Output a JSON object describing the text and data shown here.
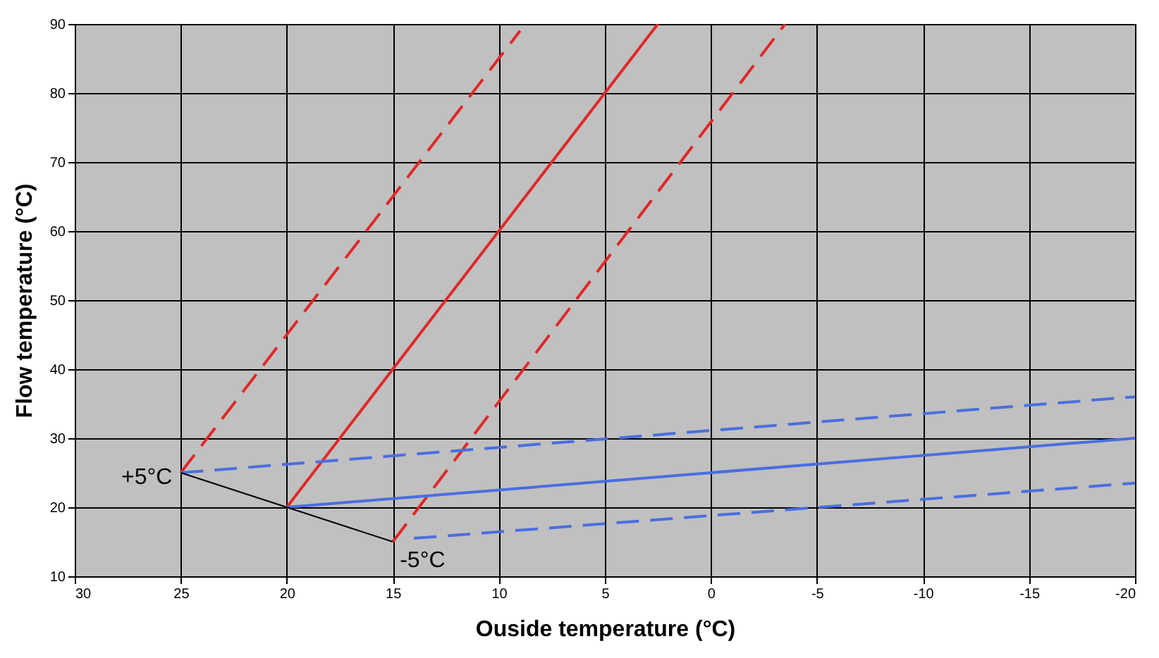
{
  "chart_data": {
    "type": "line",
    "xlabel": "Ouside temperature (°C)",
    "ylabel": "Flow temperature (°C)",
    "xlim": [
      30,
      -20
    ],
    "xticks": [
      30,
      25,
      20,
      15,
      10,
      5,
      0,
      -5,
      -10,
      -15,
      -20
    ],
    "ylim": [
      10,
      90
    ],
    "yticks": [
      10,
      20,
      30,
      40,
      50,
      60,
      70,
      80,
      90
    ],
    "grid": true,
    "series": [
      {
        "color": "#e02828",
        "line_style": "dashed",
        "x": [
          25,
          9
        ],
        "values": [
          25,
          89
        ]
      },
      {
        "color": "#e02828",
        "line_style": "solid",
        "x": [
          20,
          2.5
        ],
        "values": [
          20,
          90
        ]
      },
      {
        "color": "#e02828",
        "line_style": "dashed",
        "x": [
          15,
          -3.5
        ],
        "values": [
          15,
          90
        ]
      },
      {
        "color": "#4a6ee0",
        "line_style": "dashed",
        "x": [
          25,
          -20
        ],
        "values": [
          25,
          36
        ]
      },
      {
        "color": "#4a6ee0",
        "line_style": "solid",
        "x": [
          20,
          -20
        ],
        "values": [
          20,
          30
        ]
      },
      {
        "color": "#4a6ee0",
        "line_style": "dashed",
        "x": [
          14,
          -20
        ],
        "values": [
          15.5,
          23.5
        ]
      }
    ],
    "annotations": [
      {
        "text": "+5°C",
        "x": 25,
        "y": 25
      },
      {
        "text": "-5°C",
        "x": 15,
        "y": 15
      }
    ]
  }
}
